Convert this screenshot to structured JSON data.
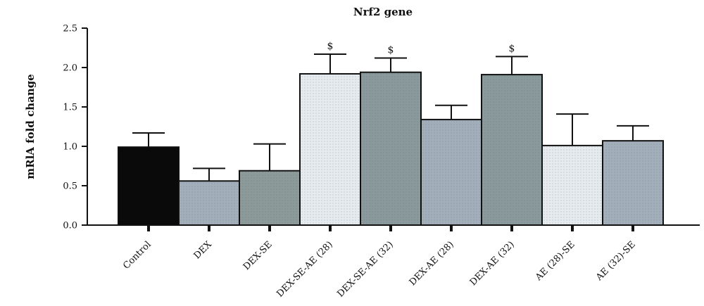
{
  "chart_data": {
    "type": "bar",
    "title": "Nrf2 gene",
    "ylabel": "mRlA fold change",
    "xlabel": "",
    "ylim": [
      0,
      2.5
    ],
    "yticks": [
      "0.0",
      "0.5",
      "1.0",
      "1.5",
      "2.0",
      "2.5"
    ],
    "grid": false,
    "categories": [
      "Control",
      "DEX",
      "DEX-SE",
      "DEX-SE-AE (28)",
      "DEX-SE-AE (32)",
      "DEX-AE (28)",
      "DEX-AE (32)",
      "AE (28)-SE",
      "AE (32)-SE"
    ],
    "values": [
      0.99,
      0.56,
      0.69,
      1.92,
      1.94,
      1.34,
      1.91,
      1.01,
      1.07
    ],
    "error_upper": [
      1.17,
      0.72,
      1.03,
      2.17,
      2.12,
      1.52,
      2.14,
      1.41,
      1.26
    ],
    "annotations": [
      "",
      "",
      "",
      "$",
      "$",
      "",
      "$",
      "",
      ""
    ],
    "bar_colors": [
      "#0a0a0a",
      "#a3aebb",
      "#8c9a9a",
      "#e6ebef",
      "#8a9a9c",
      "#a3aebb",
      "#8a9a9c",
      "#e6ebef",
      "#a3aebb"
    ]
  }
}
